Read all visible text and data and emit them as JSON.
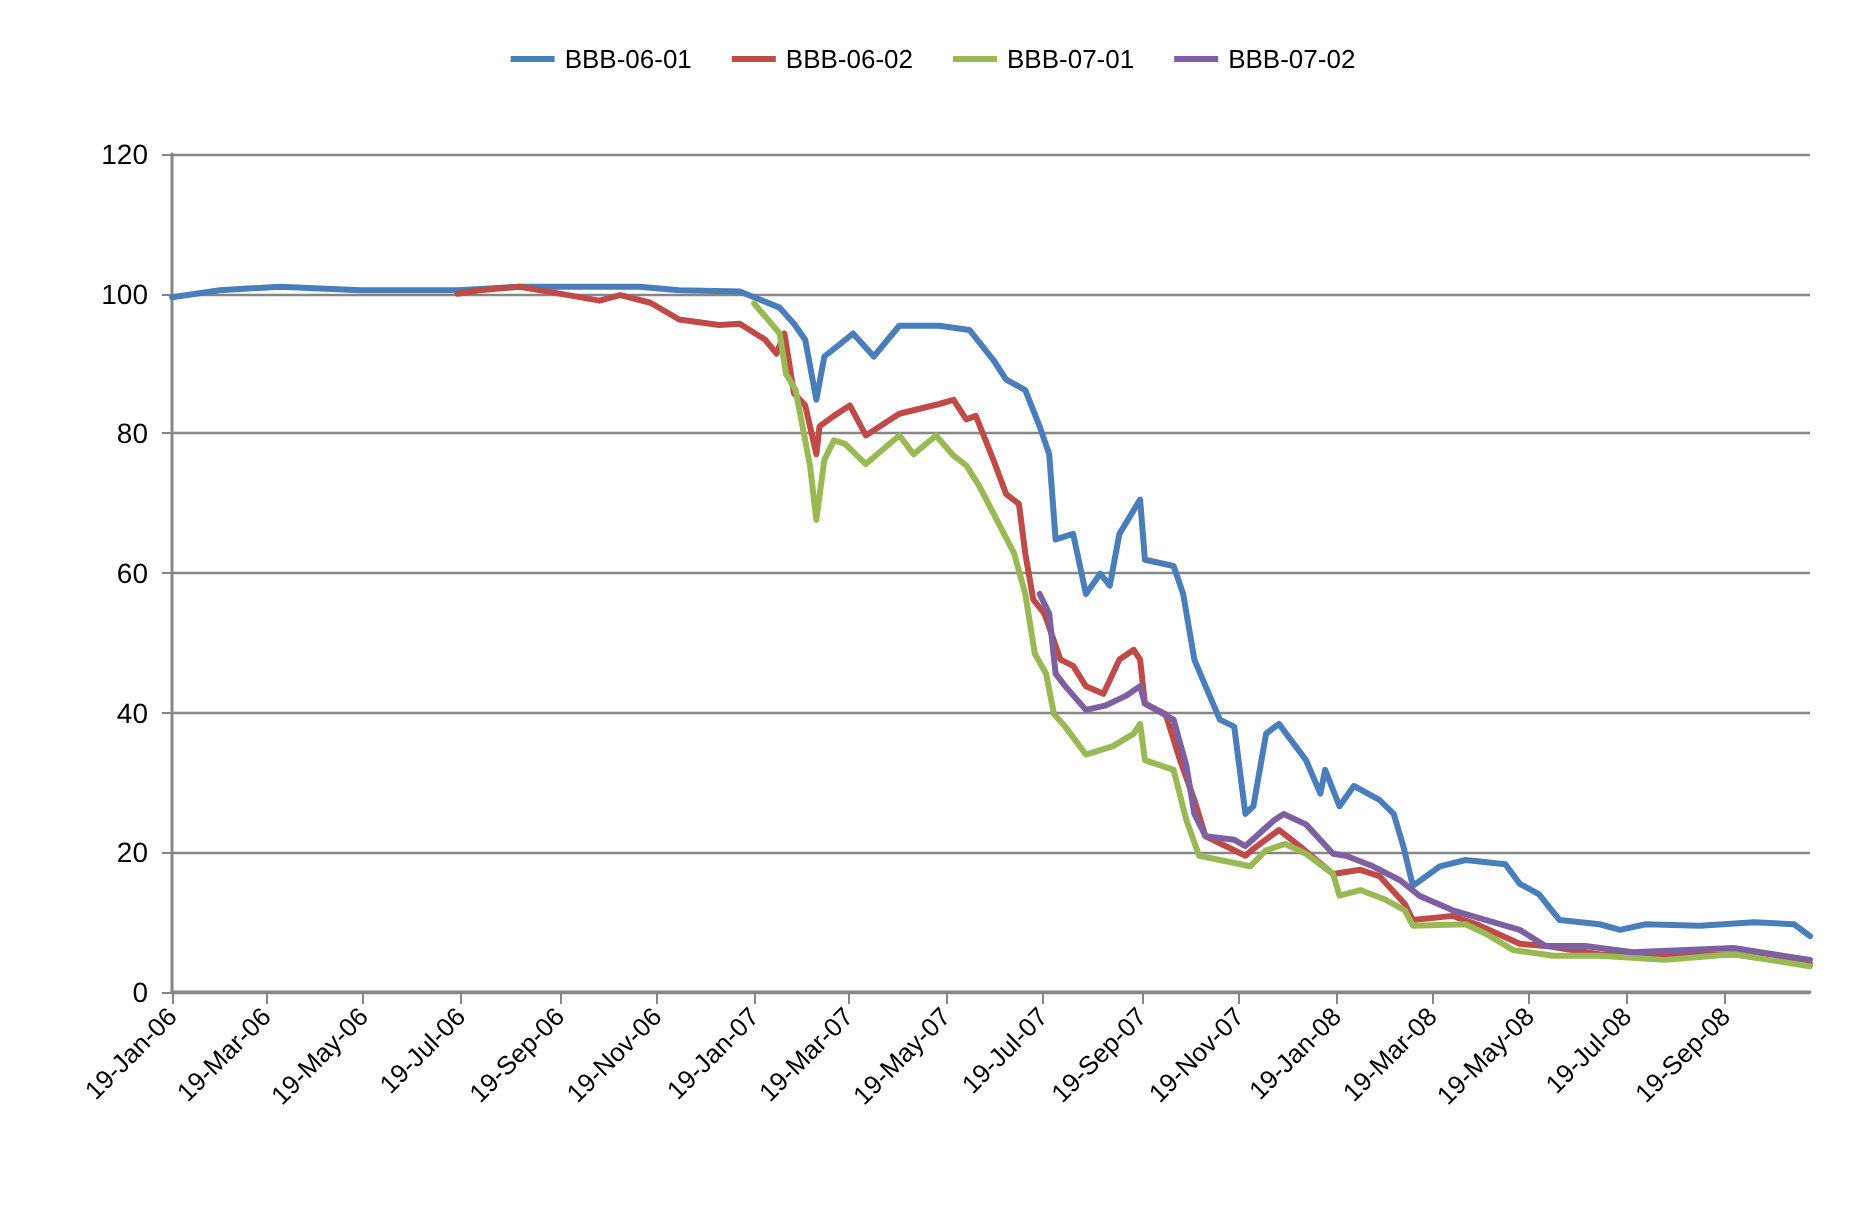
{
  "chart_data": {
    "type": "line",
    "legend": "top",
    "grid": "y",
    "marker": "none",
    "line_style": "solid",
    "xlim": [
      "2006-01-19",
      "2008-11-11"
    ],
    "xticks": [
      {
        "value": "2006-01-19",
        "label": "19-Jan-06"
      },
      {
        "value": "2006-03-19",
        "label": "19-Mar-06"
      },
      {
        "value": "2006-05-19",
        "label": "19-May-06"
      },
      {
        "value": "2006-07-19",
        "label": "19-Jul-06"
      },
      {
        "value": "2006-09-19",
        "label": "19-Sep-06"
      },
      {
        "value": "2006-11-19",
        "label": "19-Nov-06"
      },
      {
        "value": "2007-01-19",
        "label": "19-Jan-07"
      },
      {
        "value": "2007-03-19",
        "label": "19-Mar-07"
      },
      {
        "value": "2007-05-19",
        "label": "19-May-07"
      },
      {
        "value": "2007-07-19",
        "label": "19-Jul-07"
      },
      {
        "value": "2007-09-19",
        "label": "19-Sep-07"
      },
      {
        "value": "2007-11-19",
        "label": "19-Nov-07"
      },
      {
        "value": "2008-01-19",
        "label": "19-Jan-08"
      },
      {
        "value": "2008-03-19",
        "label": "19-Mar-08"
      },
      {
        "value": "2008-05-19",
        "label": "19-May-08"
      },
      {
        "value": "2008-07-19",
        "label": "19-Jul-08"
      },
      {
        "value": "2008-09-19",
        "label": "19-Sep-08"
      }
    ],
    "ylim": [
      0,
      120
    ],
    "yticks": [
      0,
      20,
      40,
      60,
      80,
      100,
      120
    ],
    "series": [
      {
        "name": "BBB-06-01",
        "color": "#4a7ebb",
        "x": [
          "2006-01-19",
          "2006-02-18",
          "2006-03-28",
          "2006-05-17",
          "2006-07-18",
          "2006-08-25",
          "2006-11-08",
          "2006-12-03",
          "2007-01-10",
          "2007-02-04",
          "2007-02-13",
          "2007-02-20",
          "2007-02-27",
          "2007-03-04",
          "2007-03-14",
          "2007-03-22",
          "2007-04-04",
          "2007-04-20",
          "2007-05-15",
          "2007-06-03",
          "2007-06-18",
          "2007-06-26",
          "2007-07-08",
          "2007-07-17",
          "2007-07-23",
          "2007-07-27",
          "2007-08-07",
          "2007-08-15",
          "2007-08-24",
          "2007-08-30",
          "2007-09-05",
          "2007-09-18",
          "2007-09-21",
          "2007-10-09",
          "2007-10-15",
          "2007-10-22",
          "2007-10-29",
          "2007-11-07",
          "2007-11-16",
          "2007-11-23",
          "2007-11-28",
          "2007-12-06",
          "2007-12-14",
          "2007-12-31",
          "2008-01-09",
          "2008-01-12",
          "2008-01-21",
          "2008-01-30",
          "2008-02-15",
          "2008-02-24",
          "2008-03-01",
          "2008-03-07",
          "2008-03-24",
          "2008-04-09",
          "2008-05-04",
          "2008-05-13",
          "2008-05-25",
          "2008-06-07",
          "2008-07-02",
          "2008-07-15",
          "2008-07-31",
          "2008-09-03",
          "2008-10-07",
          "2008-11-01",
          "2008-11-11"
        ],
        "values": [
          99.5,
          100.5,
          101,
          100.5,
          100.5,
          101,
          101,
          100.5,
          100.3,
          98,
          95.7,
          93.4,
          84.8,
          91,
          92.8,
          94.3,
          91,
          95.4,
          95.4,
          94.8,
          90.5,
          87.7,
          86.2,
          81,
          77,
          64.8,
          65.6,
          57,
          59.9,
          58.2,
          65.6,
          70.5,
          61.9,
          61,
          57,
          47.6,
          43.8,
          39,
          38,
          25.5,
          26.6,
          37,
          38.4,
          33.2,
          28.4,
          31.8,
          26.6,
          29.5,
          27.5,
          25.5,
          20.9,
          15.2,
          18,
          18.9,
          18.3,
          15.5,
          14,
          10.3,
          9.7,
          8.9,
          9.7,
          9.5,
          10,
          9.7,
          8
        ]
      },
      {
        "name": "BBB-06-02",
        "color": "#be4b48",
        "x": [
          "2006-07-17",
          "2006-07-31",
          "2006-08-25",
          "2006-09-19",
          "2006-10-14",
          "2006-10-27",
          "2006-11-15",
          "2006-12-03",
          "2006-12-28",
          "2007-01-10",
          "2007-01-26",
          "2007-02-02",
          "2007-02-07",
          "2007-02-13",
          "2007-02-20",
          "2007-02-27",
          "2007-03-01",
          "2007-03-10",
          "2007-03-20",
          "2007-03-30",
          "2007-04-20",
          "2007-05-15",
          "2007-05-24",
          "2007-06-01",
          "2007-06-07",
          "2007-06-18",
          "2007-06-26",
          "2007-07-04",
          "2007-07-08",
          "2007-07-13",
          "2007-07-20",
          "2007-07-30",
          "2007-08-07",
          "2007-08-15",
          "2007-08-26",
          "2007-09-05",
          "2007-09-14",
          "2007-09-18",
          "2007-09-21",
          "2007-10-04",
          "2007-10-13",
          "2007-10-22",
          "2007-10-29",
          "2007-11-16",
          "2007-11-23",
          "2007-11-28",
          "2007-12-14",
          "2007-12-27",
          "2008-01-17",
          "2008-02-03",
          "2008-02-15",
          "2008-03-02",
          "2008-03-07",
          "2008-04-01",
          "2008-04-18",
          "2008-05-13",
          "2008-05-29",
          "2008-07-02",
          "2008-08-12",
          "2008-09-24",
          "2008-11-11"
        ],
        "values": [
          100,
          100.5,
          101,
          100,
          99,
          99.8,
          98.7,
          96.3,
          95.5,
          95.7,
          93.4,
          91.4,
          94.3,
          85.7,
          84,
          77,
          81,
          82.5,
          84,
          79.7,
          82.8,
          84.2,
          84.8,
          82,
          82.5,
          76.2,
          71.3,
          69.9,
          62.8,
          56.2,
          54.2,
          47.6,
          46.7,
          43.8,
          42.7,
          47.6,
          49,
          47.6,
          41.3,
          39.8,
          33.2,
          27.5,
          22.3,
          20.3,
          19.5,
          20.5,
          23.2,
          20.9,
          16.9,
          17.5,
          16.6,
          12.6,
          10.3,
          10.9,
          9.5,
          6.9,
          6.6,
          5.4,
          5.2,
          5.4,
          4
        ]
      },
      {
        "name": "BBB-07-01",
        "color": "#98b954",
        "x": [
          "2007-01-19",
          "2007-02-04",
          "2007-02-08",
          "2007-02-14",
          "2007-02-23",
          "2007-02-27",
          "2007-03-04",
          "2007-03-10",
          "2007-03-17",
          "2007-03-30",
          "2007-04-20",
          "2007-04-29",
          "2007-05-13",
          "2007-05-24",
          "2007-06-01",
          "2007-06-09",
          "2007-06-22",
          "2007-07-01",
          "2007-07-08",
          "2007-07-14",
          "2007-07-21",
          "2007-07-26",
          "2007-08-02",
          "2007-08-15",
          "2007-09-01",
          "2007-09-14",
          "2007-09-18",
          "2007-09-21",
          "2007-10-09",
          "2007-10-17",
          "2007-10-25",
          "2007-11-07",
          "2007-11-26",
          "2007-12-06",
          "2007-12-18",
          "2007-12-31",
          "2008-01-17",
          "2008-01-21",
          "2008-02-03",
          "2008-02-19",
          "2008-03-02",
          "2008-03-07",
          "2008-04-09",
          "2008-04-22",
          "2008-05-09",
          "2008-06-03",
          "2008-07-02",
          "2008-08-12",
          "2008-09-24",
          "2008-11-11"
        ],
        "values": [
          98.6,
          94.3,
          88.5,
          86.2,
          75.4,
          67.6,
          76.2,
          79,
          78.5,
          75.6,
          79.7,
          77,
          79.7,
          76.8,
          75.4,
          72.5,
          66.8,
          62.8,
          57,
          48.4,
          45.6,
          39.8,
          38,
          34,
          35.2,
          37,
          38.4,
          33.2,
          31.8,
          24.6,
          19.5,
          18.9,
          18,
          20.3,
          21.2,
          19.8,
          16.9,
          13.8,
          14.6,
          13.2,
          11.7,
          9.5,
          9.7,
          8.3,
          6,
          5.2,
          5.2,
          4.6,
          5.4,
          3.7
        ]
      },
      {
        "name": "BBB-07-02",
        "color": "#7d60a0",
        "x": [
          "2007-07-17",
          "2007-07-23",
          "2007-07-27",
          "2007-08-02",
          "2007-08-15",
          "2007-08-27",
          "2007-09-09",
          "2007-09-18",
          "2007-09-21",
          "2007-10-09",
          "2007-10-17",
          "2007-10-22",
          "2007-10-29",
          "2007-11-16",
          "2007-11-23",
          "2007-12-11",
          "2007-12-17",
          "2007-12-31",
          "2008-01-17",
          "2008-01-25",
          "2008-02-11",
          "2008-02-28",
          "2008-03-11",
          "2008-04-01",
          "2008-04-22",
          "2008-05-13",
          "2008-05-29",
          "2008-06-23",
          "2008-07-23",
          "2008-09-24",
          "2008-11-11"
        ],
        "values": [
          57,
          54.2,
          45.6,
          43.8,
          40.4,
          41,
          42.4,
          43.8,
          41.3,
          39,
          32.4,
          25.5,
          22.3,
          21.8,
          20.9,
          24.6,
          25.5,
          24,
          19.8,
          19.5,
          18,
          16,
          13.8,
          11.7,
          10.3,
          8.9,
          6.6,
          6.6,
          5.7,
          6.3,
          4.6
        ]
      }
    ]
  }
}
